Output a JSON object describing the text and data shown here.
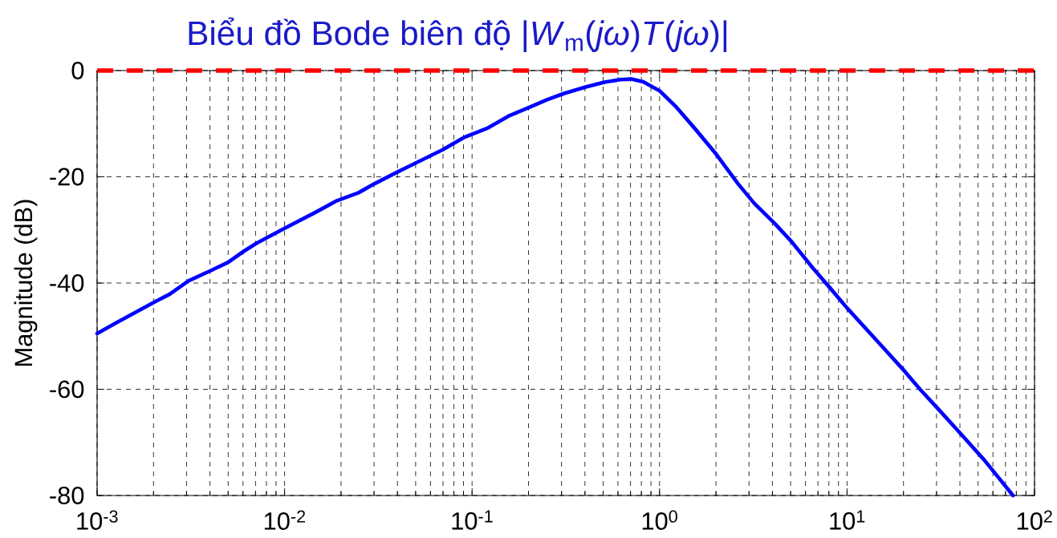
{
  "chart_data": {
    "type": "line",
    "title": "Biểu đồ Bode biên độ |*W*$_{m}$(*jω*)*T*(*jω*)|",
    "ylabel": "Magnitude (dB)",
    "log": "x",
    "grid": true,
    "xlim": [
      0.001,
      100
    ],
    "ylim": [
      -80,
      0
    ],
    "xticks": [
      {
        "value": 0.001,
        "label": "10$^{-3}$"
      },
      {
        "value": 0.01,
        "label": "10$^{-2}$"
      },
      {
        "value": 0.1,
        "label": "10$^{-1}$"
      },
      {
        "value": 1,
        "label": "10$^{0}$"
      },
      {
        "value": 10,
        "label": "10$^{1}$"
      },
      {
        "value": 100,
        "label": "10$^{2}$"
      }
    ],
    "yticks": [
      0,
      -20,
      -40,
      -60,
      -80
    ],
    "x": [
      0.001,
      0.00125,
      0.00204,
      0.00244,
      0.00307,
      0.00402,
      0.005,
      0.00607,
      0.0071,
      0.01,
      0.0146,
      0.019,
      0.0248,
      0.0302,
      0.0405,
      0.0501,
      0.0697,
      0.0905,
      0.12,
      0.156,
      0.203,
      0.251,
      0.31,
      0.404,
      0.508,
      0.618,
      0.706,
      0.818,
      1.0,
      1.23,
      1.55,
      2.02,
      2.62,
      3.2,
      4.09,
      5.06,
      6.58,
      8.15,
      10,
      15,
      20.4,
      24.5,
      30.8,
      41.4,
      53.9,
      76.8
    ],
    "series": [
      {
        "color": "#0000ff",
        "values": [
          -49.5,
          -47.6,
          -43.5,
          -42.1,
          -39.6,
          -37.7,
          -36.1,
          -34.0,
          -32.5,
          -29.7,
          -26.7,
          -24.5,
          -23.0,
          -21.3,
          -19.0,
          -17.4,
          -14.9,
          -12.6,
          -10.9,
          -8.6,
          -6.9,
          -5.5,
          -4.3,
          -3.1,
          -2.2,
          -1.7,
          -1.6,
          -2.1,
          -3.8,
          -6.9,
          -11.0,
          -15.9,
          -21.3,
          -25.0,
          -28.7,
          -32.2,
          -37.2,
          -41.0,
          -44.7,
          -51.5,
          -56.7,
          -60.0,
          -63.8,
          -68.8,
          -73.3,
          -80.0
        ]
      }
    ],
    "ref_lines": [
      {
        "axis": "y",
        "value": 0,
        "color": "#ff0000",
        "line_style": "dashed"
      }
    ]
  }
}
